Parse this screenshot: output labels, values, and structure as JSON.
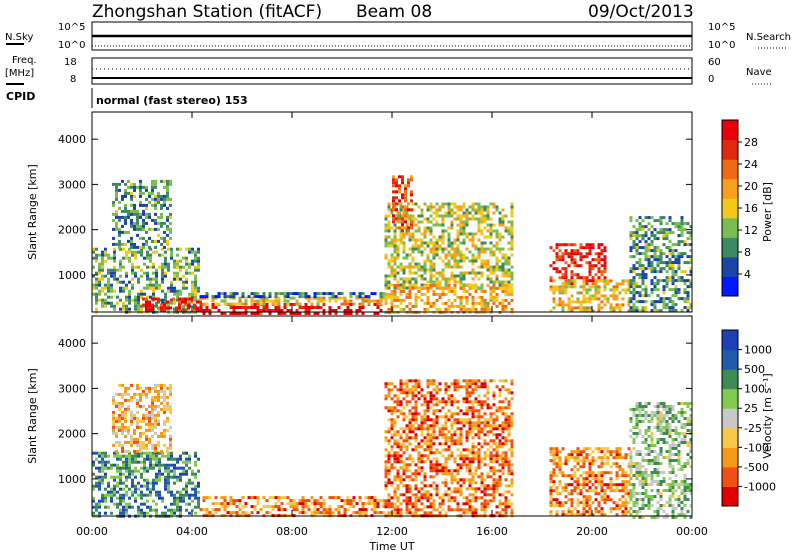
{
  "header": {
    "station": "Zhongshan Station (fitACF)",
    "beam": "Beam 08",
    "date": "09/Oct/2013"
  },
  "panels": {
    "nsky": {
      "left_label": "N.Sky",
      "left_ticks": [
        "10^5",
        "10^0"
      ],
      "right_label": "N.Search",
      "right_ticks": [
        "10^5",
        "10^0"
      ]
    },
    "freq": {
      "left_label": "Freq.",
      "left_unit": "[MHz]",
      "left_ticks": [
        "18",
        "8"
      ],
      "right_label": "Nave",
      "right_ticks": [
        "60",
        "0"
      ]
    },
    "cpid": {
      "label": "CPID",
      "text": "normal (fast stereo) 153"
    }
  },
  "colors": {
    "power_scale": [
      "#0019ff",
      "#1b44a8",
      "#3b8a62",
      "#79bc4f",
      "#f3c81b",
      "#f7a01e",
      "#ef6a12",
      "#e02a0f",
      "#e8000b"
    ],
    "velocity_scale": [
      "#e00000",
      "#f05010",
      "#f39a17",
      "#f7c84a",
      "#c8c8c8",
      "#7fca4f",
      "#3f8a55",
      "#1e5aa7",
      "#1e3fb6"
    ]
  },
  "chart_data": [
    {
      "type": "heatmap",
      "title": "",
      "xlabel": "Time UT",
      "ylabel": "Slant Range [km]",
      "x_ticks": [
        "00:00",
        "04:00",
        "08:00",
        "12:00",
        "16:00",
        "20:00",
        "00:00"
      ],
      "xlim": [
        0,
        24
      ],
      "ylim": [
        180,
        4600
      ],
      "y_ticks": [
        1000,
        2000,
        3000,
        4000
      ],
      "colorbar": {
        "label": "Power [dB]",
        "ticks": [
          "4",
          "8",
          "12",
          "16",
          "20",
          "24",
          "28"
        ],
        "range": [
          0,
          30
        ]
      },
      "regions": [
        {
          "t": [
            0.0,
            4.3
          ],
          "r": [
            180,
            1600
          ],
          "level": 0.35
        },
        {
          "t": [
            0.8,
            3.2
          ],
          "r": [
            1600,
            3100
          ],
          "level": 0.3
        },
        {
          "t": [
            2.0,
            4.3
          ],
          "r": [
            180,
            500
          ],
          "level": 0.9
        },
        {
          "t": [
            4.3,
            11.7
          ],
          "r": [
            180,
            380
          ],
          "level": 0.95
        },
        {
          "t": [
            4.3,
            11.7
          ],
          "r": [
            380,
            520
          ],
          "level": 0.55
        },
        {
          "t": [
            4.3,
            11.7
          ],
          "r": [
            520,
            620
          ],
          "level": 0.2
        },
        {
          "t": [
            11.7,
            16.8
          ],
          "r": [
            700,
            2600
          ],
          "level": 0.45
        },
        {
          "t": [
            12.0,
            12.8
          ],
          "r": [
            2000,
            3200
          ],
          "level": 0.8
        },
        {
          "t": [
            11.7,
            16.8
          ],
          "r": [
            180,
            800
          ],
          "level": 0.6
        },
        {
          "t": [
            18.3,
            20.5
          ],
          "r": [
            800,
            1700
          ],
          "level": 0.85
        },
        {
          "t": [
            18.3,
            21.5
          ],
          "r": [
            180,
            900
          ],
          "level": 0.55
        },
        {
          "t": [
            21.5,
            24.0
          ],
          "r": [
            180,
            2300
          ],
          "level": 0.3
        }
      ]
    },
    {
      "type": "heatmap",
      "title": "",
      "xlabel": "Time UT",
      "ylabel": "Slant Range [km]",
      "x_ticks": [
        "00:00",
        "04:00",
        "08:00",
        "12:00",
        "16:00",
        "20:00",
        "00:00"
      ],
      "xlim": [
        0,
        24
      ],
      "ylim": [
        180,
        4600
      ],
      "y_ticks": [
        1000,
        2000,
        3000,
        4000
      ],
      "colorbar": {
        "label": "Velocity [m s⁻¹]",
        "ticks": [
          "1000",
          "500",
          "100",
          "25",
          "-25",
          "-100",
          "-500",
          "-1000"
        ],
        "range": [
          -1000,
          1000
        ]
      },
      "regions": [
        {
          "t": [
            0.0,
            4.3
          ],
          "r": [
            180,
            1600
          ],
          "level": 0.75
        },
        {
          "t": [
            0.8,
            3.2
          ],
          "r": [
            1600,
            3100
          ],
          "level": 0.35
        },
        {
          "t": [
            4.3,
            11.7
          ],
          "r": [
            180,
            620
          ],
          "level": 0.25
        },
        {
          "t": [
            11.7,
            16.8
          ],
          "r": [
            180,
            3200
          ],
          "level": 0.22
        },
        {
          "t": [
            18.3,
            21.5
          ],
          "r": [
            180,
            1700
          ],
          "level": 0.25
        },
        {
          "t": [
            21.5,
            24.0
          ],
          "r": [
            180,
            2700
          ],
          "level": 0.6
        }
      ]
    }
  ]
}
